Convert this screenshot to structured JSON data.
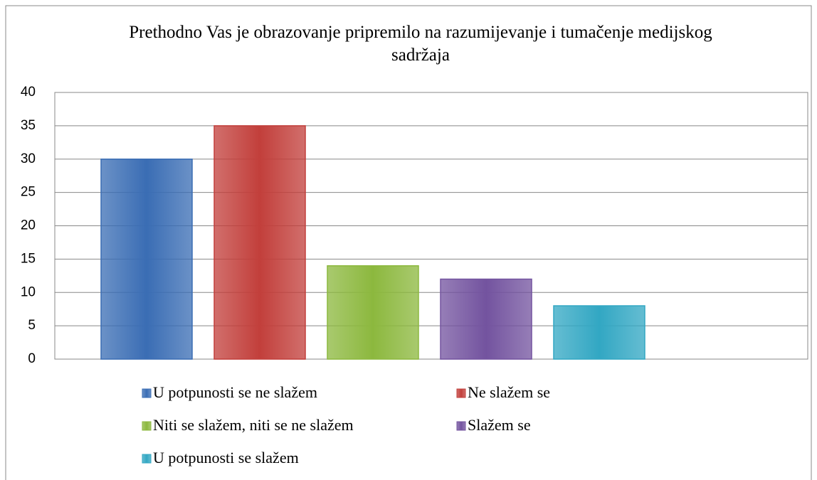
{
  "chart_data": {
    "type": "bar",
    "title": "Prethodno Vas je obrazovanje pripremilo na razumijevanje i tumačenje medijskog sadržaja",
    "series": [
      {
        "name": "U potpunosti se ne slažem",
        "color": "#3a6db4",
        "values": [
          30
        ]
      },
      {
        "name": "Ne slažem se",
        "color": "#c23f3b",
        "values": [
          35
        ]
      },
      {
        "name": "Niti se slažem, niti se ne slažem",
        "color": "#8cb83e",
        "values": [
          14
        ]
      },
      {
        "name": "Slažem se",
        "color": "#73539f",
        "values": [
          12
        ]
      },
      {
        "name": "U potpunosti se slažem",
        "color": "#32a7c3",
        "values": [
          8
        ]
      }
    ],
    "ylim": [
      0,
      40
    ],
    "yticks": [
      0,
      5,
      10,
      15,
      20,
      25,
      30,
      35,
      40
    ],
    "grid": true,
    "legend": "bottom"
  }
}
